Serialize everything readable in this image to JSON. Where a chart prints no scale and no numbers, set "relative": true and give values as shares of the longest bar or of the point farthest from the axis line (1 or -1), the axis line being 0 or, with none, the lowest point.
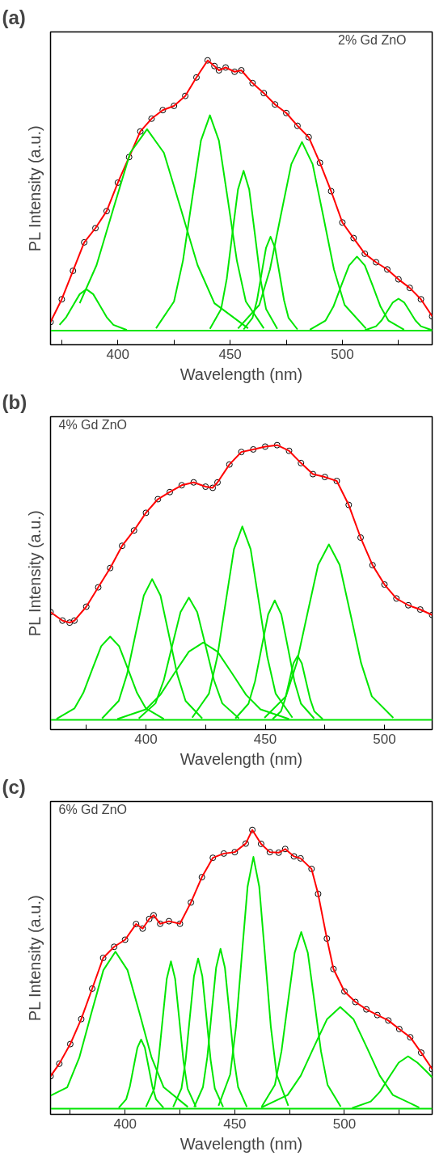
{
  "chart_data": [
    {
      "type": "line",
      "title": "(a)",
      "xlabel": "Wavelength (nm)",
      "ylabel": "PL Intensity (a.u.)",
      "annotations": [
        "2% Gd ZnO"
      ],
      "relative": true,
      "xlim": [
        370,
        540
      ],
      "xticks": [
        {
          "value": 375,
          "label": null
        },
        400,
        {
          "value": 425,
          "label": null
        },
        450,
        {
          "value": 475,
          "label": null
        },
        500,
        {
          "value": 525,
          "label": null
        }
      ],
      "series": [
        {
          "type": "scatter",
          "marker": "circle",
          "color": "#000000",
          "x": [
            370,
            375,
            380,
            385,
            390,
            395,
            400,
            405,
            410,
            415,
            420,
            425,
            430,
            435,
            440,
            443,
            445,
            448,
            452,
            455,
            460,
            465,
            470,
            475,
            480,
            485,
            490,
            495,
            500,
            505,
            510,
            515,
            520,
            525,
            530,
            535,
            540
          ],
          "values": [
            0.08,
            0.16,
            0.26,
            0.36,
            0.41,
            0.47,
            0.57,
            0.66,
            0.75,
            0.795,
            0.825,
            0.84,
            0.875,
            0.94,
            1.0,
            0.98,
            0.965,
            0.975,
            0.96,
            0.965,
            0.92,
            0.885,
            0.845,
            0.815,
            0.77,
            0.73,
            0.64,
            0.54,
            0.43,
            0.375,
            0.32,
            0.29,
            0.265,
            0.23,
            0.2,
            0.16,
            0.1
          ]
        },
        {
          "type": "line",
          "color": "#ff0000",
          "x": [
            370,
            375,
            380,
            385,
            390,
            395,
            400,
            405,
            410,
            415,
            420,
            425,
            430,
            435,
            440,
            443,
            445,
            448,
            452,
            455,
            460,
            465,
            470,
            475,
            480,
            485,
            490,
            495,
            500,
            505,
            510,
            515,
            520,
            525,
            530,
            535,
            540
          ],
          "values": [
            0.08,
            0.16,
            0.26,
            0.36,
            0.41,
            0.47,
            0.57,
            0.66,
            0.75,
            0.795,
            0.825,
            0.84,
            0.875,
            0.94,
            1.0,
            0.98,
            0.965,
            0.975,
            0.96,
            0.965,
            0.92,
            0.885,
            0.845,
            0.815,
            0.77,
            0.73,
            0.64,
            0.54,
            0.43,
            0.375,
            0.32,
            0.29,
            0.265,
            0.23,
            0.2,
            0.16,
            0.1
          ]
        },
        {
          "type": "line",
          "color": "#00e600",
          "x": [
            370,
            540
          ],
          "values": [
            0.05,
            0.05
          ]
        },
        {
          "type": "line",
          "color": "#00e600",
          "x": [
            374,
            377,
            380,
            383,
            386,
            389,
            392,
            395,
            398,
            404
          ],
          "values": [
            0.07,
            0.097,
            0.138,
            0.178,
            0.195,
            0.178,
            0.138,
            0.097,
            0.07,
            0.052
          ]
        },
        {
          "type": "line",
          "color": "#00e600",
          "x": [
            383,
            390.5,
            398,
            405.5,
            413,
            420.5,
            428,
            435.5,
            443,
            458
          ],
          "values": [
            0.146,
            0.28,
            0.479,
            0.675,
            0.758,
            0.675,
            0.479,
            0.28,
            0.146,
            0.058
          ]
        },
        {
          "type": "line",
          "color": "#00e600",
          "x": [
            417,
            425,
            429,
            433,
            437,
            441,
            445,
            449,
            453,
            457,
            465
          ],
          "values": [
            0.058,
            0.152,
            0.296,
            0.509,
            0.718,
            0.807,
            0.718,
            0.509,
            0.296,
            0.152,
            0.058
          ]
        },
        {
          "type": "line",
          "color": "#00e600",
          "x": [
            441,
            446,
            448.5,
            451,
            453.5,
            456,
            458.5,
            461,
            463.5,
            466,
            471
          ],
          "values": [
            0.056,
            0.126,
            0.232,
            0.391,
            0.546,
            0.612,
            0.546,
            0.391,
            0.232,
            0.126,
            0.056
          ]
        },
        {
          "type": "line",
          "color": "#00e600",
          "x": [
            456,
            460,
            462,
            464,
            466,
            468,
            470,
            472,
            474,
            476,
            480
          ],
          "values": [
            0.054,
            0.095,
            0.157,
            0.25,
            0.341,
            0.38,
            0.341,
            0.25,
            0.157,
            0.095,
            0.054
          ]
        },
        {
          "type": "line",
          "color": "#00e600",
          "x": [
            453.5,
            463,
            467.75,
            472.5,
            477.25,
            482,
            486.75,
            491.5,
            496.25,
            501,
            510.5
          ],
          "values": [
            0.057,
            0.14,
            0.265,
            0.452,
            0.635,
            0.713,
            0.635,
            0.452,
            0.265,
            0.14,
            0.057
          ]
        },
        {
          "type": "line",
          "color": "#00e600",
          "x": [
            485.5,
            492.5,
            496,
            499.5,
            503,
            506.5,
            510,
            513.5,
            517,
            520.5,
            527.5
          ],
          "values": [
            0.053,
            0.085,
            0.134,
            0.208,
            0.279,
            0.31,
            0.279,
            0.208,
            0.134,
            0.085,
            0.053
          ]
        },
        {
          "type": "line",
          "color": "#00e600",
          "x": [
            510,
            515,
            517.5,
            520,
            522.5,
            525,
            527.5,
            530,
            532.5,
            535,
            540
          ],
          "values": [
            0.051,
            0.065,
            0.086,
            0.118,
            0.149,
            0.162,
            0.149,
            0.118,
            0.086,
            0.065,
            0.051
          ]
        }
      ]
    },
    {
      "type": "line",
      "title": "(b)",
      "xlabel": "Wavelength (nm)",
      "ylabel": "PL Intensity (a.u.)",
      "annotations": [
        "4% Gd ZnO"
      ],
      "relative": true,
      "xlim": [
        360,
        520
      ],
      "xticks": [
        {
          "value": 375,
          "label": null
        },
        400,
        {
          "value": 425,
          "label": null
        },
        450,
        {
          "value": 475,
          "label": null
        },
        500
      ],
      "series": [
        {
          "type": "scatter",
          "marker": "circle",
          "color": "#000000",
          "x": [
            360,
            365,
            368,
            370,
            375,
            380,
            385,
            390,
            395,
            400,
            405,
            410,
            415,
            420,
            425,
            428,
            430,
            435,
            440,
            445,
            450,
            455,
            460,
            465,
            470,
            475,
            480,
            485,
            490,
            495,
            500,
            505,
            510,
            515,
            520
          ],
          "values": [
            0.413,
            0.383,
            0.376,
            0.383,
            0.432,
            0.5,
            0.568,
            0.646,
            0.7,
            0.762,
            0.81,
            0.835,
            0.859,
            0.869,
            0.854,
            0.85,
            0.869,
            0.932,
            0.976,
            0.985,
            0.995,
            1.0,
            0.98,
            0.937,
            0.898,
            0.888,
            0.874,
            0.79,
            0.675,
            0.578,
            0.51,
            0.461,
            0.437,
            0.422,
            0.403
          ]
        },
        {
          "type": "line",
          "color": "#ff0000",
          "x": [
            360,
            365,
            368,
            370,
            375,
            380,
            385,
            390,
            395,
            400,
            405,
            410,
            415,
            420,
            425,
            428,
            430,
            435,
            440,
            445,
            450,
            455,
            460,
            465,
            470,
            475,
            480,
            485,
            490,
            495,
            500,
            505,
            510,
            515,
            520
          ],
          "values": [
            0.413,
            0.383,
            0.376,
            0.383,
            0.432,
            0.5,
            0.568,
            0.646,
            0.7,
            0.762,
            0.81,
            0.835,
            0.859,
            0.869,
            0.854,
            0.85,
            0.869,
            0.932,
            0.976,
            0.985,
            0.995,
            1.0,
            0.98,
            0.937,
            0.898,
            0.888,
            0.874,
            0.79,
            0.675,
            0.578,
            0.51,
            0.461,
            0.437,
            0.422,
            0.403
          ]
        },
        {
          "type": "line",
          "color": "#00e600",
          "x": [
            360,
            520
          ],
          "values": [
            0.034,
            0.034
          ]
        },
        {
          "type": "line",
          "color": "#00e600",
          "x": [
            362.5,
            370,
            373.75,
            377.5,
            381.25,
            385,
            388.75,
            392.5,
            396.25,
            400,
            407.5
          ],
          "values": [
            0.037,
            0.074,
            0.129,
            0.212,
            0.293,
            0.327,
            0.293,
            0.212,
            0.129,
            0.074,
            0.037
          ]
        },
        {
          "type": "line",
          "color": "#00e600",
          "x": [
            381.6,
            388.6,
            392.1,
            395.6,
            399.1,
            402.6,
            406.1,
            409.6,
            413.1,
            416.6,
            423.6
          ],
          "values": [
            0.039,
            0.101,
            0.195,
            0.334,
            0.471,
            0.529,
            0.471,
            0.334,
            0.195,
            0.101,
            0.039
          ]
        },
        {
          "type": "line",
          "color": "#00e600",
          "x": [
            397,
            404,
            407.5,
            411,
            414.5,
            418,
            421.5,
            425,
            428.5,
            432,
            439
          ],
          "values": [
            0.039,
            0.092,
            0.174,
            0.295,
            0.413,
            0.464,
            0.413,
            0.295,
            0.174,
            0.092,
            0.039
          ]
        },
        {
          "type": "line",
          "color": "#00e600",
          "x": [
            388,
            400,
            406,
            412,
            418,
            424,
            430,
            436,
            442,
            448,
            460
          ],
          "values": [
            0.037,
            0.071,
            0.122,
            0.199,
            0.274,
            0.306,
            0.274,
            0.199,
            0.122,
            0.071,
            0.037
          ]
        },
        {
          "type": "line",
          "color": "#00e600",
          "x": [
            419.4,
            426.4,
            429.9,
            433.4,
            436.9,
            440.4,
            443.9,
            447.4,
            450.9,
            454.4,
            461.4
          ],
          "values": [
            0.042,
            0.126,
            0.255,
            0.446,
            0.634,
            0.714,
            0.634,
            0.446,
            0.255,
            0.126,
            0.042
          ]
        },
        {
          "type": "line",
          "color": "#00e600",
          "x": [
            437.5,
            443,
            445.75,
            448.5,
            451.25,
            454,
            456.75,
            459.5,
            462.25,
            465,
            470.5
          ],
          "values": [
            0.039,
            0.091,
            0.17,
            0.289,
            0.405,
            0.454,
            0.405,
            0.289,
            0.17,
            0.091,
            0.039
          ]
        },
        {
          "type": "line",
          "color": "#00e600",
          "x": [
            453.1,
            456.6,
            458.35,
            460.1,
            461.85,
            463.6,
            465.35,
            467.1,
            468.85,
            470.6,
            474.1
          ],
          "values": [
            0.037,
            0.064,
            0.107,
            0.17,
            0.233,
            0.259,
            0.233,
            0.17,
            0.107,
            0.064,
            0.037
          ]
        },
        {
          "type": "line",
          "color": "#00e600",
          "x": [
            449.7,
            458.7,
            463.2,
            467.7,
            472.2,
            476.7,
            481.2,
            485.7,
            490.2,
            494.7,
            503.7
          ],
          "values": [
            0.041,
            0.117,
            0.234,
            0.408,
            0.579,
            0.651,
            0.579,
            0.408,
            0.234,
            0.117,
            0.041
          ]
        }
      ]
    },
    {
      "type": "line",
      "title": "(c)",
      "xlabel": "Wavelength (nm)",
      "ylabel": "PL Intensity (a.u.)",
      "annotations": [
        "6% Gd ZnO"
      ],
      "relative": true,
      "xlim": [
        366,
        540
      ],
      "xticks": [
        {
          "value": 375,
          "label": null
        },
        400,
        {
          "value": 425,
          "label": null
        },
        450,
        {
          "value": 475,
          "label": null
        },
        500,
        {
          "value": 525,
          "label": null
        }
      ],
      "series": [
        {
          "type": "scatter",
          "marker": "circle",
          "color": "#000000",
          "x": [
            366,
            370,
            375,
            380,
            385,
            390,
            395,
            400,
            405,
            408,
            411,
            413,
            416,
            420,
            425,
            430,
            435,
            440,
            445,
            450,
            455,
            458,
            462,
            466,
            470,
            473,
            477,
            480,
            485,
            488,
            492,
            495,
            500,
            505,
            510,
            515,
            520,
            525,
            530,
            535,
            540
          ],
          "values": [
            0.134,
            0.178,
            0.247,
            0.335,
            0.442,
            0.55,
            0.589,
            0.614,
            0.669,
            0.653,
            0.687,
            0.7,
            0.67,
            0.679,
            0.67,
            0.745,
            0.834,
            0.902,
            0.917,
            0.922,
            0.952,
            1.0,
            0.951,
            0.922,
            0.92,
            0.933,
            0.907,
            0.9,
            0.863,
            0.775,
            0.618,
            0.511,
            0.432,
            0.395,
            0.369,
            0.349,
            0.33,
            0.3,
            0.271,
            0.217,
            0.159
          ]
        },
        {
          "type": "line",
          "color": "#ff0000",
          "x": [
            366,
            370,
            375,
            380,
            385,
            390,
            395,
            400,
            405,
            408,
            411,
            413,
            416,
            420,
            425,
            430,
            435,
            440,
            445,
            450,
            455,
            458,
            462,
            466,
            470,
            473,
            477,
            480,
            485,
            488,
            492,
            495,
            500,
            505,
            510,
            515,
            520,
            525,
            530,
            535,
            540
          ],
          "values": [
            0.134,
            0.178,
            0.247,
            0.335,
            0.442,
            0.55,
            0.589,
            0.614,
            0.669,
            0.653,
            0.687,
            0.7,
            0.67,
            0.679,
            0.67,
            0.745,
            0.834,
            0.902,
            0.917,
            0.922,
            0.952,
            1.0,
            0.951,
            0.922,
            0.92,
            0.933,
            0.907,
            0.9,
            0.863,
            0.775,
            0.618,
            0.511,
            0.432,
            0.395,
            0.369,
            0.349,
            0.33,
            0.3,
            0.271,
            0.217,
            0.159
          ]
        },
        {
          "type": "line",
          "color": "#00e600",
          "x": [
            366,
            540
          ],
          "values": [
            0.02,
            0.02
          ]
        },
        {
          "type": "line",
          "color": "#00e600",
          "x": [
            366,
            373.6,
            379.1,
            384.6,
            390.1,
            395.6,
            401.1,
            406.6,
            412.1,
            417.6,
            428.6
          ],
          "values": [
            0.066,
            0.095,
            0.199,
            0.355,
            0.507,
            0.572,
            0.507,
            0.355,
            0.199,
            0.095,
            0.026
          ]
        },
        {
          "type": "line",
          "color": "#00e600",
          "x": [
            397.1,
            400.5,
            402.2,
            403.9,
            405.6,
            407.3,
            409,
            410.7,
            412.4,
            414.1,
            417.5
          ],
          "values": [
            0.023,
            0.053,
            0.099,
            0.167,
            0.234,
            0.263,
            0.234,
            0.167,
            0.099,
            0.053,
            0.023
          ]
        },
        {
          "type": "line",
          "color": "#00e600",
          "x": [
            409.5,
            413.3,
            415.2,
            417.1,
            419,
            420.9,
            422.8,
            424.7,
            426.6,
            428.5,
            432.3
          ],
          "values": [
            0.026,
            0.09,
            0.188,
            0.334,
            0.477,
            0.538,
            0.477,
            0.334,
            0.188,
            0.09,
            0.026
          ]
        },
        {
          "type": "line",
          "color": "#00e600",
          "x": [
            421.9,
            425.7,
            427.6,
            429.5,
            431.4,
            433.3,
            435.2,
            437.1,
            439,
            440.9,
            444.7
          ],
          "values": [
            0.026,
            0.091,
            0.191,
            0.34,
            0.486,
            0.548,
            0.486,
            0.34,
            0.191,
            0.091,
            0.026
          ]
        },
        {
          "type": "line",
          "color": "#00e600",
          "x": [
            431.5,
            435.5,
            437.5,
            439.5,
            441.5,
            443.5,
            445.5,
            447.5,
            449.5,
            451.5,
            455.5
          ],
          "values": [
            0.026,
            0.096,
            0.202,
            0.361,
            0.516,
            0.582,
            0.516,
            0.361,
            0.202,
            0.096,
            0.026
          ]
        },
        {
          "type": "line",
          "color": "#00e600",
          "x": [
            442.6,
            447.9,
            450.55,
            453.2,
            455.85,
            458.5,
            461.15,
            463.8,
            466.45,
            469.1,
            474.4
          ],
          "values": [
            0.03,
            0.14,
            0.307,
            0.557,
            0.801,
            0.905,
            0.801,
            0.557,
            0.307,
            0.14,
            0.03
          ]
        },
        {
          "type": "line",
          "color": "#00e600",
          "x": [
            462.3,
            468.3,
            471.3,
            474.3,
            477.3,
            480.3,
            483.3,
            486.3,
            489.3,
            492.3,
            498.3
          ],
          "values": [
            0.027,
            0.104,
            0.222,
            0.397,
            0.568,
            0.641,
            0.568,
            0.397,
            0.222,
            0.104,
            0.027
          ]
        },
        {
          "type": "line",
          "color": "#00e600",
          "x": [
            462.1,
            474.1,
            480.1,
            486.1,
            492.1,
            498.1,
            504.1,
            510.1,
            516.1,
            522.1,
            534.1
          ],
          "values": [
            0.024,
            0.068,
            0.136,
            0.237,
            0.335,
            0.377,
            0.335,
            0.237,
            0.136,
            0.068,
            0.024
          ]
        },
        {
          "type": "line",
          "color": "#00e600",
          "x": [
            503.5,
            512,
            516.25,
            520.5,
            524.75,
            529,
            533.25,
            537.5,
            540
          ],
          "values": [
            0.022,
            0.045,
            0.08,
            0.132,
            0.182,
            0.204,
            0.182,
            0.15,
            0.13
          ]
        }
      ]
    }
  ]
}
